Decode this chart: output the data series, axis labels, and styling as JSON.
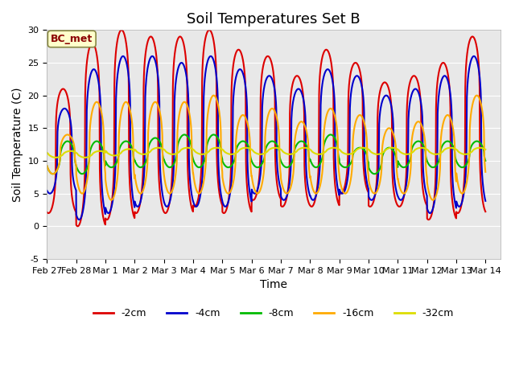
{
  "title": "Soil Temperatures Set B",
  "xlabel": "Time",
  "ylabel": "Soil Temperature (C)",
  "ylim": [
    -5,
    30
  ],
  "xlim": [
    0,
    15.5
  ],
  "xtick_positions": [
    0,
    1,
    2,
    3,
    4,
    5,
    6,
    7,
    8,
    9,
    10,
    11,
    12,
    13,
    14,
    15
  ],
  "xtick_labels": [
    "Feb 27",
    "Feb 28",
    "Mar 1",
    "Mar 2",
    "Mar 3",
    "Mar 4",
    "Mar 5",
    "Mar 6",
    "Mar 7",
    "Mar 8",
    "Mar 9",
    "Mar 10",
    "Mar 11",
    "Mar 12",
    "Mar 13",
    "Mar 14"
  ],
  "ytick_positions": [
    -5,
    0,
    5,
    10,
    15,
    20,
    25,
    30
  ],
  "series": [
    {
      "label": "-2cm",
      "color": "#dd0000",
      "daily_peaks": [
        21,
        28,
        30,
        29,
        29,
        30,
        27,
        26,
        23,
        27,
        25,
        22,
        23,
        25,
        29
      ],
      "daily_mins": [
        2,
        0,
        1,
        2,
        2,
        3,
        2,
        4,
        3,
        3,
        5,
        3,
        3,
        1,
        2
      ],
      "peak_time": 0.55,
      "rise_sharpness": 4.0,
      "fall_sharpness": 3.5
    },
    {
      "label": "-4cm",
      "color": "#0000cc",
      "daily_peaks": [
        18,
        24,
        26,
        26,
        25,
        26,
        24,
        23,
        21,
        24,
        23,
        20,
        21,
        23,
        26
      ],
      "daily_mins": [
        5,
        1,
        2,
        3,
        3,
        3,
        3,
        5,
        4,
        4,
        5,
        4,
        4,
        2,
        3
      ],
      "peak_time": 0.6,
      "rise_sharpness": 3.5,
      "fall_sharpness": 3.0
    },
    {
      "label": "-8cm",
      "color": "#00bb00",
      "daily_peaks": [
        13,
        13,
        13,
        13.5,
        14,
        14,
        13,
        13,
        13,
        14,
        12,
        12,
        13,
        13,
        13
      ],
      "daily_mins": [
        8,
        8,
        9,
        9,
        9,
        9,
        9,
        9,
        9,
        9,
        9,
        8,
        9,
        9,
        9
      ],
      "peak_time": 0.7,
      "rise_sharpness": 2.0,
      "fall_sharpness": 1.8
    },
    {
      "label": "-16cm",
      "color": "#ffaa00",
      "daily_peaks": [
        14,
        19,
        19,
        19,
        19,
        20,
        17,
        18,
        16,
        18,
        17,
        15,
        16,
        17,
        20
      ],
      "daily_mins": [
        8,
        5,
        4,
        5,
        5,
        5,
        5,
        5,
        5,
        5,
        5,
        5,
        5,
        4,
        5
      ],
      "peak_time": 0.7,
      "rise_sharpness": 2.5,
      "fall_sharpness": 2.2
    },
    {
      "label": "-32cm",
      "color": "#dddd00",
      "daily_peaks": [
        11.5,
        11.5,
        11.8,
        12,
        12,
        12,
        12,
        12,
        12,
        12,
        12,
        12,
        12,
        12,
        12
      ],
      "daily_mins": [
        10.5,
        10.5,
        10.8,
        11,
        11,
        11,
        11,
        11,
        11,
        11,
        11,
        11,
        11,
        11,
        11
      ],
      "peak_time": 0.8,
      "rise_sharpness": 1.5,
      "fall_sharpness": 1.3
    }
  ],
  "background_color": "#e8e8e8",
  "annotation_text": "BC_met",
  "n_points_per_day": 200,
  "num_days": 15,
  "legend_ncol": 5,
  "linewidth": 1.5,
  "title_fontsize": 13,
  "axis_fontsize": 10,
  "tick_fontsize": 8
}
